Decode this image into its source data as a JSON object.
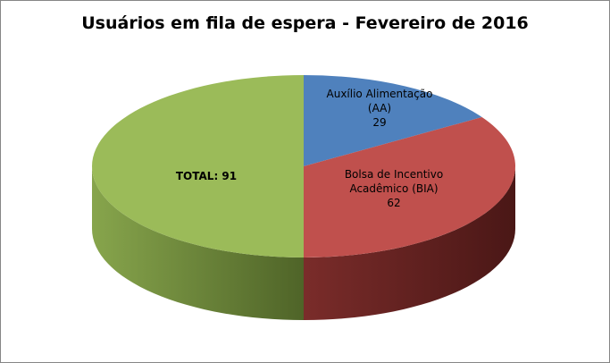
{
  "chart_data": {
    "type": "pie",
    "style": "3d",
    "title": "Usuários em fila de espera - Fevereiro de 2016",
    "slices": [
      {
        "label_lines": [
          "Auxílio Alimentação",
          "(AA)",
          "29"
        ],
        "name": "Auxílio Alimentação (AA)",
        "value": 29,
        "color": "#4f81bd"
      },
      {
        "label_lines": [
          "Bolsa de Incentivo",
          "Acadêmico (BIA)",
          "62"
        ],
        "name": "Bolsa de Incentivo Acadêmico (BIA)",
        "value": 62,
        "color": "#c0504d"
      },
      {
        "label_lines": [
          "TOTAL: 91"
        ],
        "name": "TOTAL",
        "value": 91,
        "color": "#9bbb59"
      }
    ],
    "legend": "none"
  }
}
